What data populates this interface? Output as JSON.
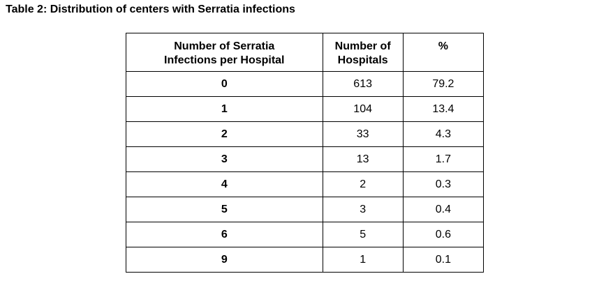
{
  "caption": "Table 2: Distribution of centers with Serratia infections",
  "table": {
    "headers": [
      {
        "line1": "Number of Serratia",
        "line2": "Infections per Hospital"
      },
      {
        "line1": "Number of",
        "line2": "Hospitals"
      },
      {
        "line1": "%",
        "line2": ""
      }
    ],
    "rows": [
      [
        "0",
        "613",
        "79.2"
      ],
      [
        "1",
        "104",
        "13.4"
      ],
      [
        "2",
        "33",
        "4.3"
      ],
      [
        "3",
        "13",
        "1.7"
      ],
      [
        "4",
        "2",
        "0.3"
      ],
      [
        "5",
        "3",
        "0.4"
      ],
      [
        "6",
        "5",
        "0.6"
      ],
      [
        "9",
        "1",
        "0.1"
      ]
    ]
  }
}
